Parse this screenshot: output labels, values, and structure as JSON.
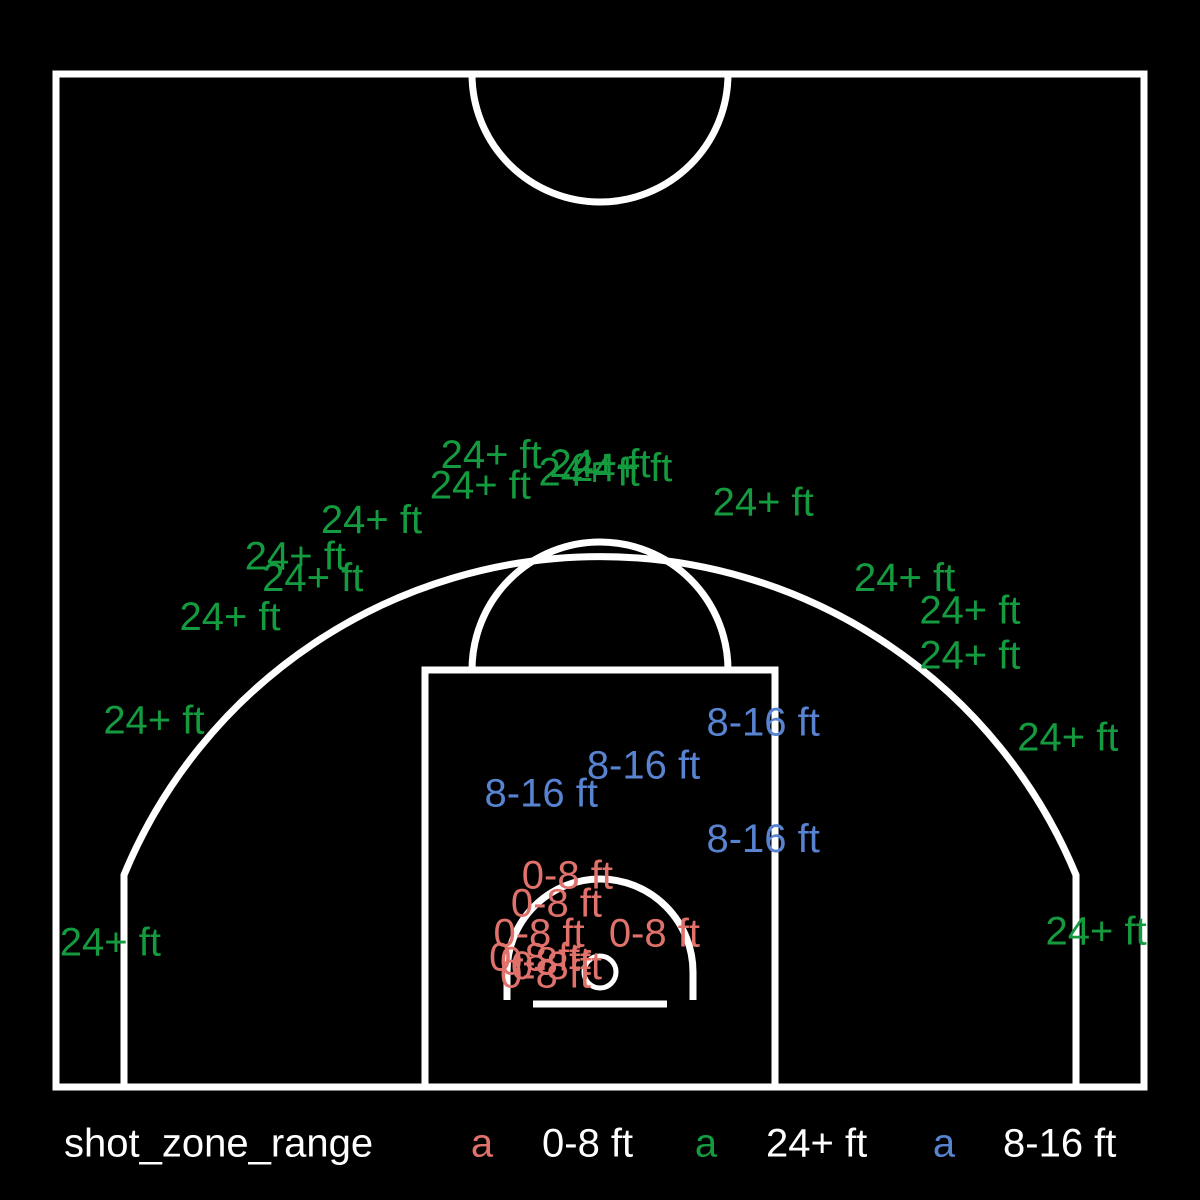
{
  "chart_data": {
    "type": "scatter",
    "title": "",
    "xlabel": "",
    "ylabel": "",
    "xlim": [
      -250,
      250
    ],
    "ylim": [
      -52,
      418
    ],
    "grid": false,
    "legend_position": "bottom",
    "legend_title": "shot_zone_range",
    "legend_key_glyph": "a",
    "series": [
      {
        "name": "0-8 ft",
        "color": "#e0726b",
        "points": [
          {
            "x": -20,
            "y": 32,
            "label": "0-8 ft"
          },
          {
            "x": -15,
            "y": 45,
            "label": "0-8 ft"
          },
          {
            "x": -28,
            "y": 18,
            "label": "0-8 ft"
          },
          {
            "x": -30,
            "y": 7,
            "label": "0-8 ft"
          },
          {
            "x": -25,
            "y": 5,
            "label": "0-8 ft"
          },
          {
            "x": -20,
            "y": 3,
            "label": "0-8 ft"
          },
          {
            "x": -25,
            "y": -1,
            "label": "0-8 ft"
          },
          {
            "x": 25,
            "y": 18,
            "label": "0-8 ft"
          }
        ]
      },
      {
        "name": "24+ ft",
        "color": "#159b3f",
        "points": [
          {
            "x": -50,
            "y": 240,
            "label": "24+ ft"
          },
          {
            "x": -55,
            "y": 226,
            "label": "24+ ft"
          },
          {
            "x": -5,
            "y": 232,
            "label": "24+ ft"
          },
          {
            "x": 0,
            "y": 236,
            "label": "24+ ft"
          },
          {
            "x": 10,
            "y": 234,
            "label": "24+ ft"
          },
          {
            "x": 75,
            "y": 218,
            "label": "24+ ft"
          },
          {
            "x": -105,
            "y": 210,
            "label": "24+ ft"
          },
          {
            "x": -140,
            "y": 193,
            "label": "24+ ft"
          },
          {
            "x": -132,
            "y": 183,
            "label": "24+ ft"
          },
          {
            "x": -170,
            "y": 165,
            "label": "24+ ft"
          },
          {
            "x": 140,
            "y": 183,
            "label": "24+ ft"
          },
          {
            "x": 170,
            "y": 168,
            "label": "24+ ft"
          },
          {
            "x": 170,
            "y": 147,
            "label": "24+ ft"
          },
          {
            "x": -205,
            "y": 117,
            "label": "24+ ft"
          },
          {
            "x": 215,
            "y": 109,
            "label": "24+ ft"
          },
          {
            "x": -225,
            "y": 14,
            "label": "24+ ft"
          },
          {
            "x": 228,
            "y": 19,
            "label": "24+ ft"
          }
        ]
      },
      {
        "name": "8-16 ft",
        "color": "#5883d1",
        "points": [
          {
            "x": -27,
            "y": 83,
            "label": "8-16 ft"
          },
          {
            "x": 20,
            "y": 96,
            "label": "8-16 ft"
          },
          {
            "x": 75,
            "y": 116,
            "label": "8-16 ft"
          },
          {
            "x": 75,
            "y": 62,
            "label": "8-16 ft"
          }
        ]
      }
    ]
  }
}
